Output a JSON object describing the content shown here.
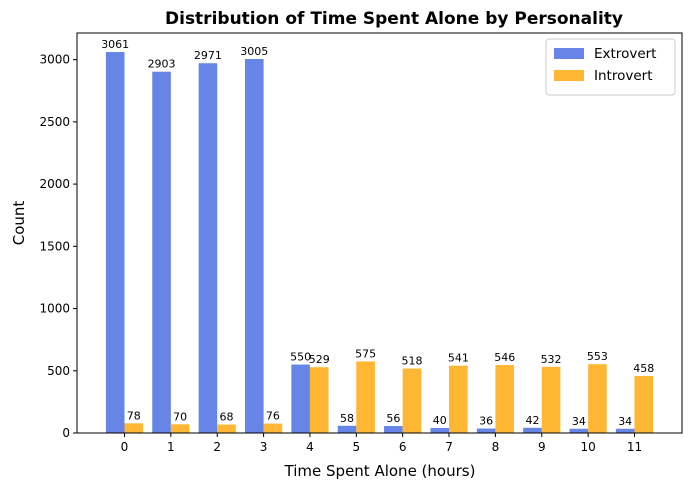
{
  "chart_data": {
    "type": "bar",
    "title": "Distribution of Time Spent Alone by Personality",
    "xlabel": "Time Spent Alone (hours)",
    "ylabel": "Count",
    "categories": [
      "0",
      "1",
      "2",
      "3",
      "4",
      "5",
      "6",
      "7",
      "8",
      "9",
      "10",
      "11"
    ],
    "series": [
      {
        "name": "Extrovert",
        "color": "#6685e6",
        "values": [
          3061,
          2903,
          2971,
          3005,
          550,
          58,
          56,
          40,
          36,
          42,
          34,
          34
        ]
      },
      {
        "name": "Introvert",
        "color": "#ffb733",
        "values": [
          78,
          70,
          68,
          76,
          529,
          575,
          518,
          541,
          546,
          532,
          553,
          458
        ]
      }
    ],
    "ylim": [
      0,
      3214
    ],
    "yticks": [
      0,
      500,
      1000,
      1500,
      2000,
      2500,
      3000
    ],
    "grid": false,
    "legend_position": "top-right"
  }
}
